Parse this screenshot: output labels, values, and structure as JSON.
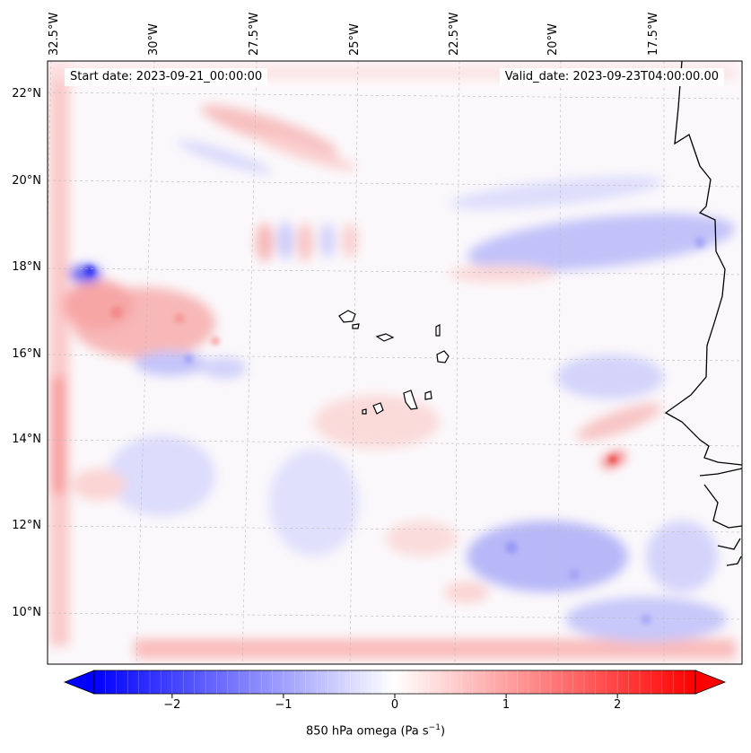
{
  "annotations": {
    "start_date": "Start date: 2023-09-21_00:00:00",
    "valid_date": "Valid_date: 2023-09-23T04:00:00.00"
  },
  "map": {
    "projection": "Lambert conformal",
    "lon_labels": [
      "32.5°W",
      "30°W",
      "27.5°W",
      "25°W",
      "22.5°W",
      "20°W",
      "17.5°W"
    ],
    "lat_labels": [
      "22°N",
      "20°N",
      "18°N",
      "16°N",
      "14°N",
      "12°N",
      "10°N"
    ],
    "gridlines": true,
    "coastline_color": "#000000",
    "features": [
      "west-african-coastline",
      "cape-verde-islands"
    ]
  },
  "field": {
    "variable": "850 hPa omega",
    "colormap": "bwr",
    "colors": {
      "negative": "#0000ff",
      "zero": "#ffffff",
      "positive": "#ff0000"
    },
    "positive_features": [
      "boundary-frame",
      "northwest-band",
      "gambia-max",
      "west-cluster"
    ],
    "negative_features": [
      "senegal-mauritania-band",
      "guinea-basin",
      "west-cluster-blue"
    ]
  },
  "colorbar": {
    "label_prefix": "850 hPa omega (Pa s",
    "label_exp": "−1",
    "label_suffix": ")",
    "range": [
      -2.7,
      2.7
    ],
    "ticks": [
      "−2",
      "−1",
      "0",
      "1",
      "2"
    ],
    "tick_values": [
      -2,
      -1,
      0,
      1,
      2
    ],
    "extend": "both",
    "levels": 54
  }
}
